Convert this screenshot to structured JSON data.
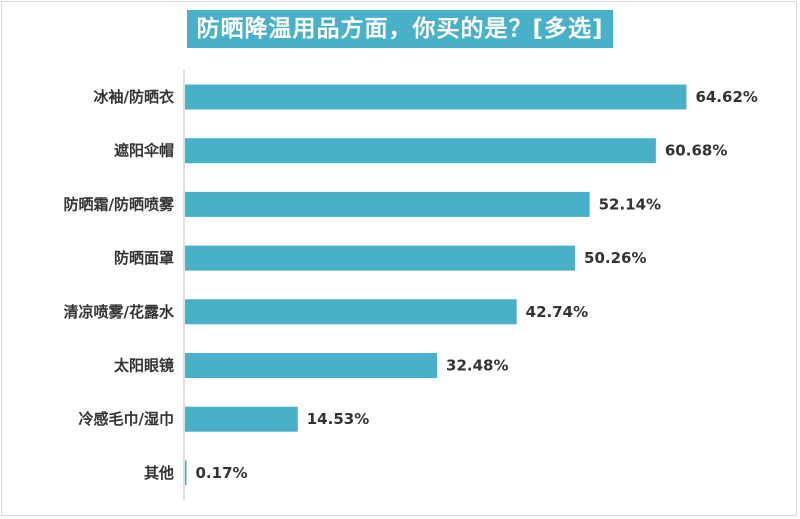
{
  "title": "防晒降温用品方面，你买的是？[多选]",
  "colors": {
    "bar": "#48b0c9",
    "title_bg": "#48b0c9",
    "axis": "#bfbfbf"
  },
  "chart_data": {
    "type": "bar",
    "orientation": "horizontal",
    "categories": [
      "冰袖/防晒衣",
      "遮阳伞帽",
      "防晒霜/防晒喷雾",
      "防晒面罩",
      "清凉喷雾/花露水",
      "太阳眼镜",
      "冷感毛巾/湿巾",
      "其他"
    ],
    "values": [
      64.62,
      60.68,
      52.14,
      50.26,
      42.74,
      32.48,
      14.53,
      0.17
    ],
    "value_labels": [
      "64.62%",
      "60.68%",
      "52.14%",
      "50.26%",
      "42.74%",
      "32.48%",
      "14.53%",
      "0.17%"
    ],
    "unit": "%",
    "xlim": [
      0,
      100
    ],
    "grid": false,
    "legend": "none"
  }
}
